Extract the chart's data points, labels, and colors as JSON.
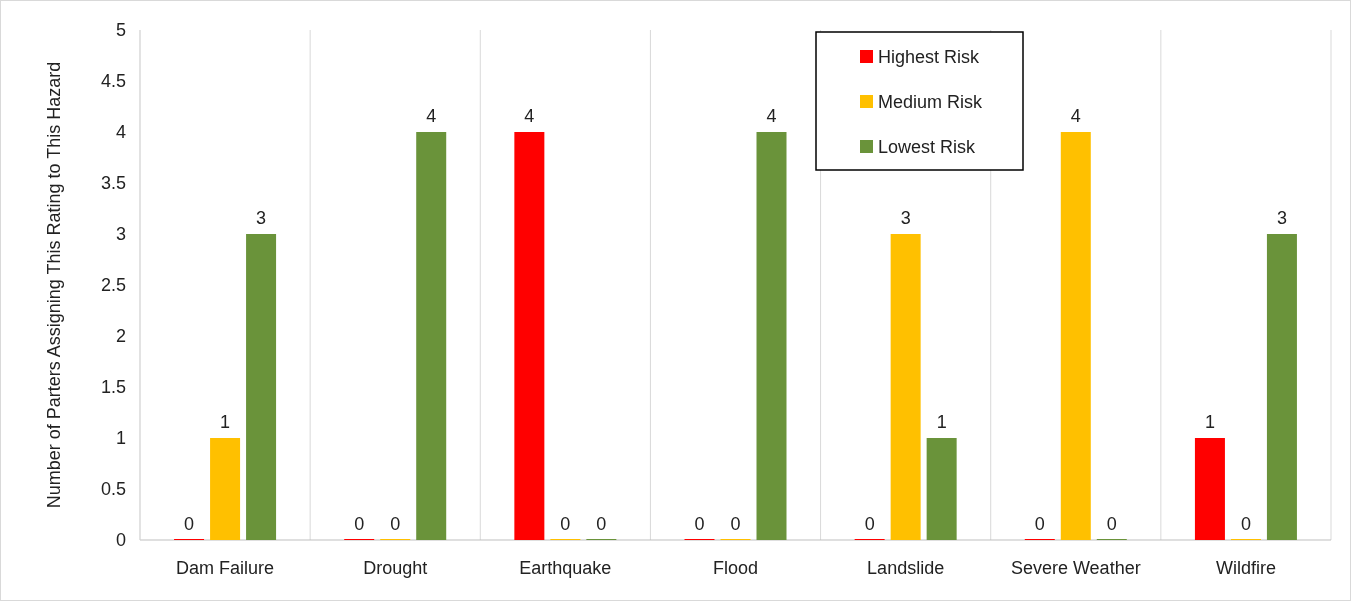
{
  "chart_data": {
    "type": "bar",
    "ylabel": "Number of Parters Assigning This Rating to This Hazard",
    "categories": [
      "Dam Failure",
      "Drought",
      "Earthquake",
      "Flood",
      "Landslide",
      "Severe Weather",
      "Wildfire"
    ],
    "series": [
      {
        "name": "Highest Risk",
        "color": "#ff0000",
        "values": [
          0,
          0,
          4,
          0,
          0,
          0,
          1
        ]
      },
      {
        "name": "Medium Risk",
        "color": "#ffc000",
        "values": [
          1,
          0,
          0,
          0,
          3,
          4,
          0
        ]
      },
      {
        "name": "Lowest Risk",
        "color": "#6a933a",
        "values": [
          3,
          4,
          0,
          4,
          1,
          0,
          3
        ]
      }
    ],
    "ylim": [
      0,
      5
    ],
    "yticks": [
      0,
      0.5,
      1,
      1.5,
      2,
      2.5,
      3,
      3.5,
      4,
      4.5,
      5
    ],
    "grid": "x",
    "legend": "top right",
    "data_labels": true
  }
}
